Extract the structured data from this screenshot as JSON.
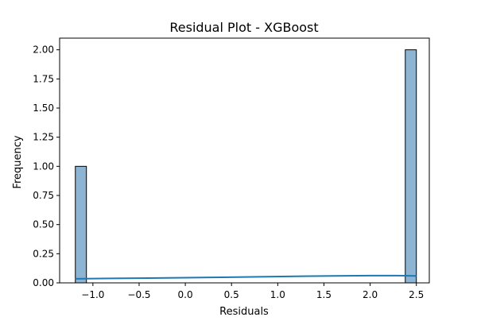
{
  "chart_data": {
    "type": "bar",
    "title": "Residual Plot - XGBoost",
    "xlabel": "Residuals",
    "ylabel": "Frequency",
    "xlim": [
      -1.36,
      2.64
    ],
    "ylim": [
      0,
      2.1
    ],
    "xticks": [
      -1.0,
      -0.5,
      0.0,
      0.5,
      1.0,
      1.5,
      2.0,
      2.5
    ],
    "xtick_labels": [
      "−1.0",
      "−0.5",
      "0.0",
      "0.5",
      "1.0",
      "1.5",
      "2.0",
      "2.5"
    ],
    "yticks": [
      0.0,
      0.25,
      0.5,
      0.75,
      1.0,
      1.25,
      1.5,
      1.75,
      2.0
    ],
    "ytick_labels": [
      "0.00",
      "0.25",
      "0.50",
      "0.75",
      "1.00",
      "1.25",
      "1.50",
      "1.75",
      "2.00"
    ],
    "bins": [
      {
        "x0": -1.19,
        "x1": -1.07,
        "count": 1
      },
      {
        "x0": 2.38,
        "x1": 2.5,
        "count": 2
      }
    ],
    "kde": {
      "x": [
        -1.19,
        -0.8,
        -0.4,
        0.0,
        0.4,
        0.8,
        1.2,
        1.6,
        2.0,
        2.3,
        2.5
      ],
      "y": [
        0.035,
        0.038,
        0.041,
        0.044,
        0.048,
        0.052,
        0.056,
        0.06,
        0.062,
        0.062,
        0.06
      ]
    },
    "grid": false,
    "colors": {
      "bar_fill": "#8db4d3",
      "bar_edge": "#000000",
      "kde_line": "#1f77b4"
    }
  }
}
